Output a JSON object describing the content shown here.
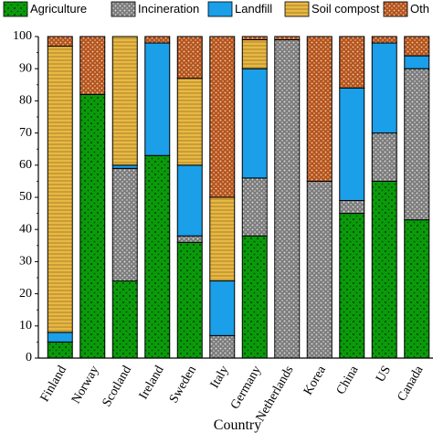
{
  "chart_data": {
    "type": "bar",
    "stacked": true,
    "xlabel": "Country",
    "ylabel": "",
    "ylim": [
      0,
      100
    ],
    "yticks": [
      0,
      10,
      20,
      30,
      40,
      50,
      60,
      70,
      80,
      90,
      100
    ],
    "grid": false,
    "legend_position": "top",
    "categories": [
      "Finland",
      "Norway",
      "Scotland",
      "Ireland",
      "Sweden",
      "Italy",
      "Germany",
      "Netherlands",
      "Korea",
      "China",
      "US",
      "Canada"
    ],
    "series": [
      {
        "name": "Agriculture",
        "color": "#0a9a0a",
        "pattern": "dots-dark",
        "values": [
          5,
          82,
          24,
          63,
          36,
          0,
          38,
          0,
          0,
          45,
          55,
          43
        ]
      },
      {
        "name": "Incineration",
        "color": "#8a8a8a",
        "pattern": "dots-light",
        "values": [
          0,
          0,
          35,
          0,
          2,
          7,
          18,
          99,
          55,
          4,
          15,
          47
        ]
      },
      {
        "name": "Landfill",
        "color": "#1a9fe8",
        "pattern": "none",
        "values": [
          3,
          0,
          1,
          35,
          22,
          17,
          34,
          0,
          0,
          35,
          28,
          4
        ]
      },
      {
        "name": "Soil compost",
        "color": "#e9b844",
        "pattern": "hlines",
        "values": [
          89,
          0,
          40,
          0,
          27,
          26,
          9,
          0,
          0,
          0,
          0,
          0
        ]
      },
      {
        "name": "Oth",
        "color": "#b5541c",
        "pattern": "dots-light",
        "values": [
          3,
          18,
          0,
          2,
          13,
          50,
          1,
          1,
          45,
          16,
          2,
          6
        ]
      }
    ]
  }
}
